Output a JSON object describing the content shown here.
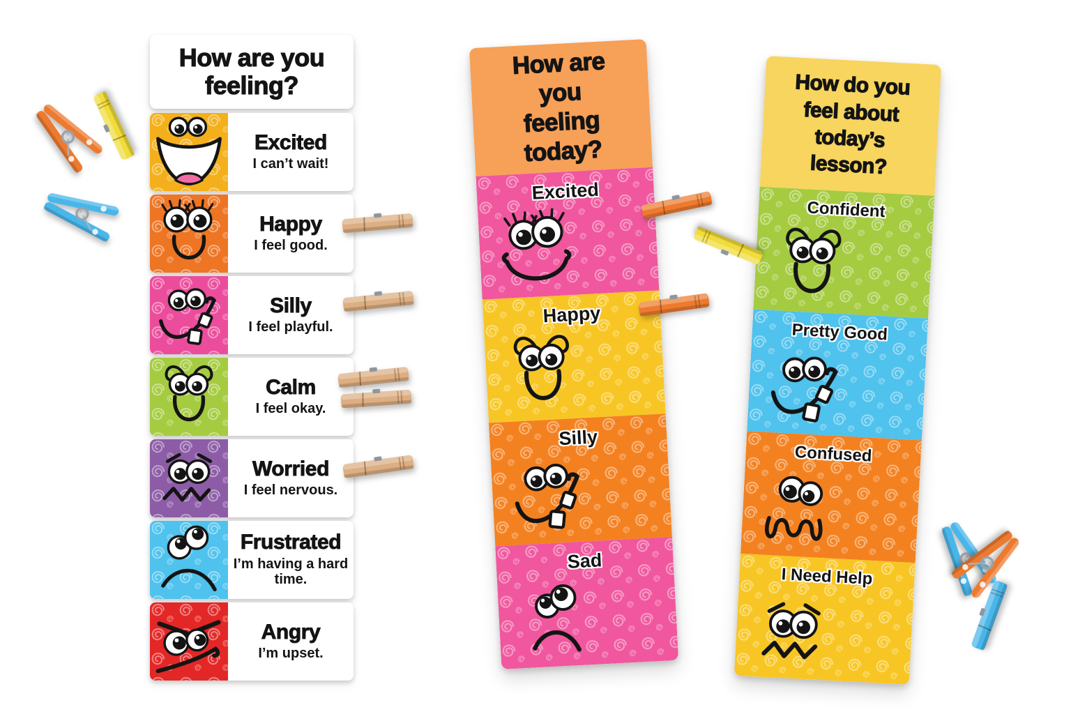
{
  "left_chart": {
    "title": "How are you feeling?",
    "rows": [
      {
        "feeling": "Excited",
        "description": "I can’t wait!",
        "color": "#F3B01C",
        "face": "excited-open-smile"
      },
      {
        "feeling": "Happy",
        "description": "I feel good.",
        "color": "#ED7523",
        "face": "happy-lashes"
      },
      {
        "feeling": "Silly",
        "description": "I feel playful.",
        "color": "#EB4D9C",
        "face": "silly-teeth"
      },
      {
        "feeling": "Calm",
        "description": "I feel okay.",
        "color": "#A5CB41",
        "face": "calm-curly-brows"
      },
      {
        "feeling": "Worried",
        "description": "I feel nervous.",
        "color": "#8C5CA6",
        "face": "worried-zigzag"
      },
      {
        "feeling": "Frustrated",
        "description": "I’m having a hard time.",
        "color": "#4FC2ED",
        "face": "frustrated-frown"
      },
      {
        "feeling": "Angry",
        "description": "I’m upset.",
        "color": "#E32726",
        "face": "angry-scowl"
      }
    ]
  },
  "middle_chart": {
    "title": "How are you feeling today?",
    "header_color": "#F7A058",
    "sections": [
      {
        "feeling": "Excited",
        "color": "#F0579E",
        "face": "excited-lashes-smile"
      },
      {
        "feeling": "Happy",
        "color": "#F8C624",
        "face": "calm-curly-brows"
      },
      {
        "feeling": "Silly",
        "color": "#F48120",
        "face": "silly-teeth"
      },
      {
        "feeling": "Sad",
        "color": "#F0579E",
        "face": "sad-frown"
      }
    ]
  },
  "right_chart": {
    "title": "How do you feel about today’s lesson?",
    "header_color": "#F7D55E",
    "sections": [
      {
        "feeling": "Confident",
        "color": "#A5CB41",
        "face": "calm-curly-brows"
      },
      {
        "feeling": "Pretty Good",
        "color": "#4FC2ED",
        "face": "silly-teeth"
      },
      {
        "feeling": "Confused",
        "color": "#F48120",
        "face": "confused-squiggle"
      },
      {
        "feeling": "I Need Help",
        "color": "#F8C624",
        "face": "worried-zigzag"
      }
    ]
  },
  "clothespins": {
    "colors": {
      "orange": "#ED7A2F",
      "yellow": "#F0DC3A",
      "blue": "#49B6EA",
      "wood": "#DCAE82"
    },
    "items": [
      {
        "id": "pin-orange-upper-left",
        "color": "orange",
        "view": "side"
      },
      {
        "id": "pin-yellow-upper-left",
        "color": "yellow",
        "view": "top"
      },
      {
        "id": "pin-blue-left",
        "color": "blue",
        "view": "side"
      },
      {
        "id": "pin-wood-happy",
        "color": "wood",
        "view": "top"
      },
      {
        "id": "pin-wood-silly",
        "color": "wood",
        "view": "top"
      },
      {
        "id": "pin-wood-calm-a",
        "color": "wood",
        "view": "top"
      },
      {
        "id": "pin-wood-calm-b",
        "color": "wood",
        "view": "top"
      },
      {
        "id": "pin-wood-worried",
        "color": "wood",
        "view": "top"
      },
      {
        "id": "pin-orange-middle-top",
        "color": "orange",
        "view": "top"
      },
      {
        "id": "pin-yellow-middle",
        "color": "yellow",
        "view": "top"
      },
      {
        "id": "pin-orange-middle-lower",
        "color": "orange",
        "view": "top"
      },
      {
        "id": "pin-blue-lower-right-a",
        "color": "blue",
        "view": "side"
      },
      {
        "id": "pin-orange-lower-right",
        "color": "orange",
        "view": "side"
      },
      {
        "id": "pin-blue-lower-right-b",
        "color": "blue",
        "view": "top"
      }
    ]
  }
}
